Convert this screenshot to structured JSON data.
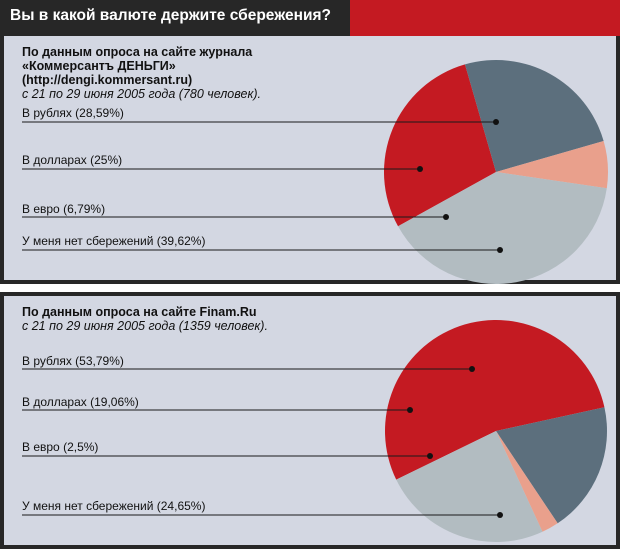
{
  "header": {
    "title": "Вы в какой валюте держите сбережения?"
  },
  "colors": {
    "header_dark": "#272727",
    "accent_red": "#c41a22",
    "panel_bg": "#d3d7e2",
    "slate": "#5c6f7d",
    "salmon": "#e9a08c",
    "light_gray": "#b2bcc1"
  },
  "chart_data": [
    {
      "type": "pie",
      "source_lines": [
        "По данным опроса на сайте журнала",
        "«Коммерсантъ ДЕНЬГИ»",
        "(http://dengi.kommersant.ru)"
      ],
      "period": "с 21 по 29 июня 2005 года (780 человек).",
      "slices": [
        {
          "label": "В рублях (28,59%)",
          "value": 28.59,
          "color": "#c41a22"
        },
        {
          "label": "В долларах (25%)",
          "value": 25,
          "color": "#5c6f7d"
        },
        {
          "label": "В евро (6,79%)",
          "value": 6.79,
          "color": "#e9a08c"
        },
        {
          "label": "У меня нет сбережений (39,62%)",
          "value": 39.62,
          "color": "#b2bcc1"
        }
      ]
    },
    {
      "type": "pie",
      "source_lines": [
        "По данным опроса на сайте Finam.Ru"
      ],
      "period": "с 21 по 29 июня 2005 года (1359 человек).",
      "slices": [
        {
          "label": "В рублях (53,79%)",
          "value": 53.79,
          "color": "#c41a22"
        },
        {
          "label": "В долларах (19,06%)",
          "value": 19.06,
          "color": "#5c6f7d"
        },
        {
          "label": "В евро (2,5%)",
          "value": 2.5,
          "color": "#e9a08c"
        },
        {
          "label": "У меня нет сбережений (24,65%)",
          "value": 24.65,
          "color": "#b2bcc1"
        }
      ]
    }
  ]
}
